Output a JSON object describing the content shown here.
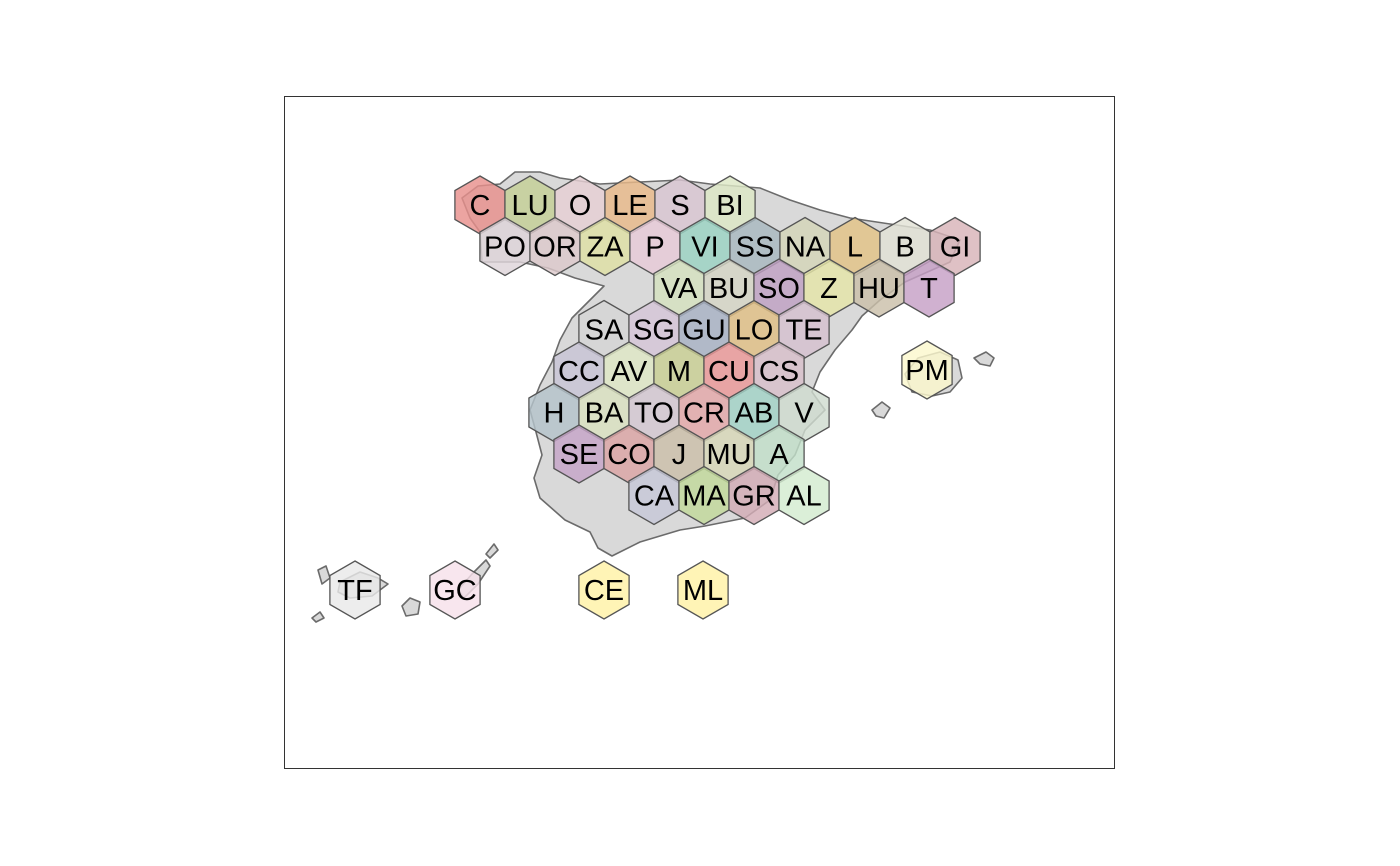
{
  "map": {
    "cells": [
      {
        "label": "C",
        "row": 0,
        "col": 0,
        "color": "#e8908c"
      },
      {
        "label": "LU",
        "row": 0,
        "col": 1,
        "color": "#c5cf96"
      },
      {
        "label": "O",
        "row": 0,
        "col": 2,
        "color": "#e6d0d4"
      },
      {
        "label": "LE",
        "row": 0,
        "col": 3,
        "color": "#e9b98a"
      },
      {
        "label": "S",
        "row": 0,
        "col": 4,
        "color": "#d9c6d2"
      },
      {
        "label": "BI",
        "row": 0,
        "col": 5,
        "color": "#dde8c6"
      },
      {
        "label": "PO",
        "row": 1,
        "col": 0,
        "color": "#ded4d9"
      },
      {
        "label": "OR",
        "row": 1,
        "col": 1,
        "color": "#ddc9cc"
      },
      {
        "label": "ZA",
        "row": 1,
        "col": 2,
        "color": "#dfe0a5"
      },
      {
        "label": "P",
        "row": 1,
        "col": 3,
        "color": "#e8cbd8"
      },
      {
        "label": "VI",
        "row": 1,
        "col": 4,
        "color": "#9bd3c3"
      },
      {
        "label": "SS",
        "row": 1,
        "col": 5,
        "color": "#a8b8c0"
      },
      {
        "label": "NA",
        "row": 1,
        "col": 6,
        "color": "#d4d6b8"
      },
      {
        "label": "L",
        "row": 1,
        "col": 7,
        "color": "#e3c386"
      },
      {
        "label": "B",
        "row": 1,
        "col": 8,
        "color": "#e2e2d6"
      },
      {
        "label": "GI",
        "row": 1,
        "col": 9,
        "color": "#d8b3b8"
      },
      {
        "label": "VA",
        "row": 2,
        "col": 1,
        "color": "#d5e2c0"
      },
      {
        "label": "BU",
        "row": 2,
        "col": 2,
        "color": "#d5d5c6"
      },
      {
        "label": "SO",
        "row": 2,
        "col": 3,
        "color": "#c0a1c3"
      },
      {
        "label": "Z",
        "row": 2,
        "col": 4,
        "color": "#e5e5a8"
      },
      {
        "label": "HU",
        "row": 2,
        "col": 5,
        "color": "#cbbfaa"
      },
      {
        "label": "T",
        "row": 2,
        "col": 6,
        "color": "#c6a0c6"
      },
      {
        "label": "SA",
        "row": 3,
        "col": 0,
        "color": "#d5d5d5"
      },
      {
        "label": "SG",
        "row": 3,
        "col": 1,
        "color": "#d6c6d8"
      },
      {
        "label": "GU",
        "row": 3,
        "col": 2,
        "color": "#a8b2c4"
      },
      {
        "label": "LO",
        "row": 3,
        "col": 3,
        "color": "#e0c085"
      },
      {
        "label": "TE",
        "row": 3,
        "col": 4,
        "color": "#d6c1cf"
      },
      {
        "label": "CC",
        "row": 4,
        "col": 0,
        "color": "#c8c5d6"
      },
      {
        "label": "AV",
        "row": 4,
        "col": 1,
        "color": "#dfe8c6"
      },
      {
        "label": "M",
        "row": 4,
        "col": 2,
        "color": "#c9d094"
      },
      {
        "label": "CU",
        "row": 4,
        "col": 3,
        "color": "#eb9999"
      },
      {
        "label": "CS",
        "row": 4,
        "col": 4,
        "color": "#d8c0cb"
      },
      {
        "label": "H",
        "row": 5,
        "col": 0,
        "color": "#b4c3ca"
      },
      {
        "label": "BA",
        "row": 5,
        "col": 1,
        "color": "#dbe2c1"
      },
      {
        "label": "TO",
        "row": 5,
        "col": 2,
        "color": "#d4c8d2"
      },
      {
        "label": "CR",
        "row": 5,
        "col": 3,
        "color": "#e4a8aa"
      },
      {
        "label": "AB",
        "row": 5,
        "col": 4,
        "color": "#a2d3c7"
      },
      {
        "label": "V",
        "row": 5,
        "col": 5,
        "color": "#cfdccf"
      },
      {
        "label": "SE",
        "row": 6,
        "col": 0,
        "color": "#c6a5c8"
      },
      {
        "label": "CO",
        "row": 6,
        "col": 1,
        "color": "#dca5a5"
      },
      {
        "label": "J",
        "row": 6,
        "col": 2,
        "color": "#ccc0aa"
      },
      {
        "label": "MU",
        "row": 6,
        "col": 3,
        "color": "#d8d8b8"
      },
      {
        "label": "A",
        "row": 6,
        "col": 4,
        "color": "#c2dfc9"
      },
      {
        "label": "CA",
        "row": 7,
        "col": 1,
        "color": "#c7c8d8"
      },
      {
        "label": "MA",
        "row": 7,
        "col": 2,
        "color": "#c2d99b"
      },
      {
        "label": "GR",
        "row": 7,
        "col": 3,
        "color": "#d3acb6"
      },
      {
        "label": "AL",
        "row": 7,
        "col": 4,
        "color": "#d3ecd0"
      }
    ],
    "islands": [
      {
        "label": "PM",
        "color": "#fbf8cd"
      },
      {
        "label": "TF",
        "color": "#e9e9e9"
      },
      {
        "label": "GC",
        "color": "#f7e1ea"
      },
      {
        "label": "CE",
        "color": "#fff2a6"
      },
      {
        "label": "ML",
        "color": "#fff2a6"
      }
    ]
  }
}
